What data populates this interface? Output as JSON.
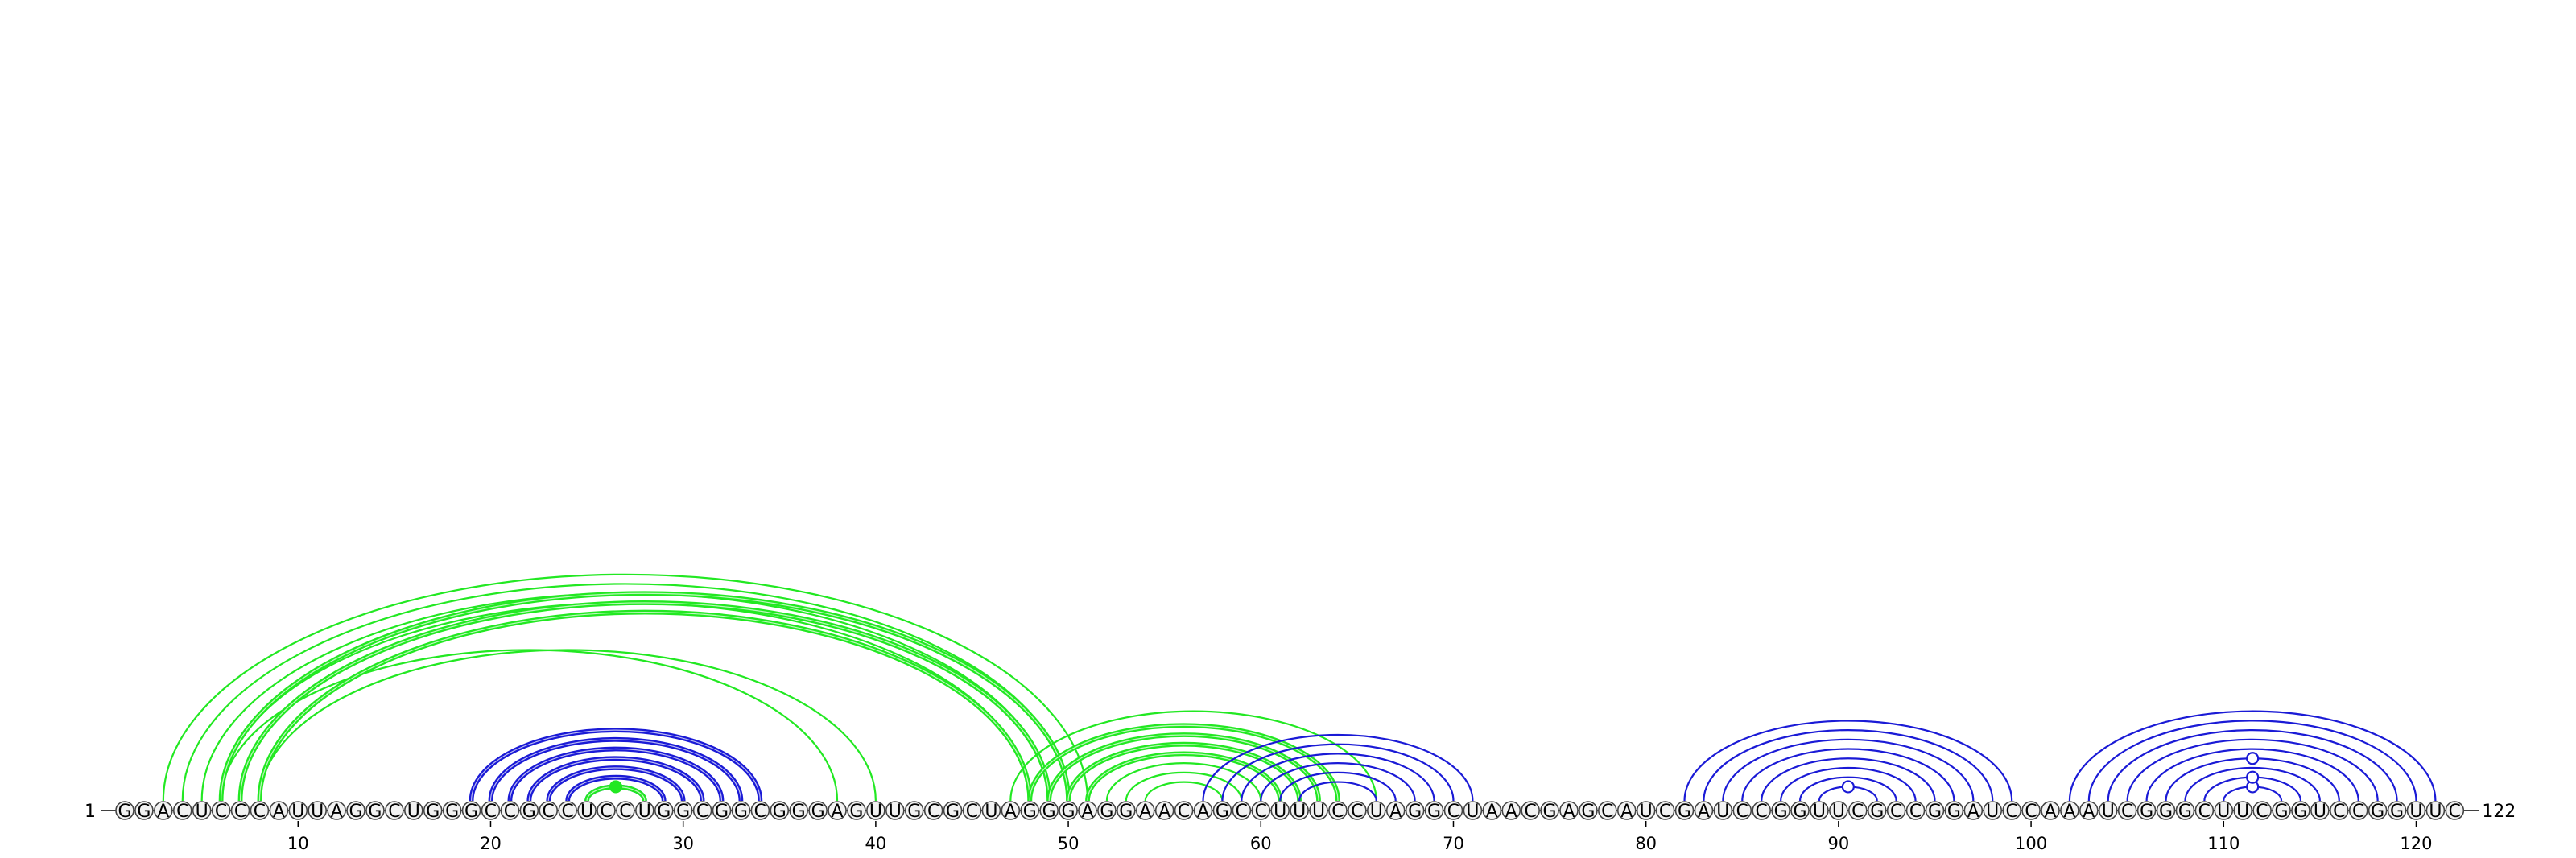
{
  "sequence": "GGACUCCCAUUAGGCUGGGCCGCCUCCUGGCGGCGGGAGUUGCGCUAGGGAGGAACAGCCUUUCCUAGGCUAACGAGCAUCGAUCCGGUUCGCCGGAUCCAAAUCGGGCUUCGGUCCGGUUC",
  "start_label": "1",
  "end_label": "122",
  "ticks": [
    {
      "pos": 10,
      "label": "10"
    },
    {
      "pos": 20,
      "label": "20"
    },
    {
      "pos": 30,
      "label": "30"
    },
    {
      "pos": 40,
      "label": "40"
    },
    {
      "pos": 50,
      "label": "50"
    },
    {
      "pos": 60,
      "label": "60"
    },
    {
      "pos": 70,
      "label": "70"
    },
    {
      "pos": 80,
      "label": "80"
    },
    {
      "pos": 90,
      "label": "90"
    },
    {
      "pos": 100,
      "label": "100"
    },
    {
      "pos": 110,
      "label": "110"
    },
    {
      "pos": 120,
      "label": "120"
    }
  ],
  "colors": {
    "blue": "#1a1ad6",
    "green": "#22e822",
    "ring": "#444444",
    "nt_fill": "#f2f2f2"
  },
  "arc_groups": [
    {
      "color": "blue",
      "weight": "bold",
      "pairs": [
        [
          19,
          34
        ],
        [
          20,
          33
        ],
        [
          21,
          32
        ],
        [
          22,
          31
        ],
        [
          23,
          30
        ],
        [
          24,
          29
        ],
        [
          25,
          28
        ]
      ]
    },
    {
      "color": "green",
      "weight": "bold",
      "pairs": [
        [
          25,
          28
        ]
      ]
    },
    {
      "color": "green",
      "weight": "normal",
      "pairs": [
        [
          3,
          51
        ],
        [
          4,
          50
        ],
        [
          5,
          49
        ],
        [
          6,
          48
        ],
        [
          6,
          38
        ],
        [
          8,
          40
        ]
      ]
    },
    {
      "color": "green",
      "weight": "bold",
      "pairs": [
        [
          6,
          50
        ],
        [
          7,
          49
        ],
        [
          8,
          48
        ]
      ]
    },
    {
      "color": "green",
      "weight": "bold",
      "pairs": [
        [
          48,
          64
        ],
        [
          49,
          63
        ],
        [
          50,
          62
        ],
        [
          51,
          61
        ]
      ]
    },
    {
      "color": "green",
      "weight": "normal",
      "pairs": [
        [
          47,
          66
        ],
        [
          52,
          60
        ],
        [
          53,
          59
        ],
        [
          54,
          58
        ]
      ]
    },
    {
      "color": "blue",
      "weight": "normal",
      "pairs": [
        [
          57,
          71
        ],
        [
          58,
          70
        ],
        [
          59,
          69
        ],
        [
          60,
          68
        ],
        [
          61,
          67
        ],
        [
          62,
          66
        ]
      ]
    },
    {
      "color": "blue",
      "weight": "normal",
      "pairs": [
        [
          82,
          99
        ],
        [
          83,
          98
        ],
        [
          84,
          97
        ],
        [
          85,
          96
        ],
        [
          86,
          95
        ],
        [
          87,
          94
        ],
        [
          88,
          93
        ],
        [
          89,
          92
        ]
      ]
    },
    {
      "color": "blue",
      "weight": "normal",
      "pairs": [
        [
          102,
          121
        ],
        [
          103,
          120
        ],
        [
          104,
          119
        ],
        [
          105,
          118
        ],
        [
          106,
          117
        ],
        [
          107,
          116
        ],
        [
          108,
          115
        ],
        [
          109,
          114
        ],
        [
          110,
          113
        ]
      ]
    }
  ],
  "markers": [
    {
      "pos": 26.5,
      "row": 0,
      "color": "green",
      "style": "filled"
    },
    {
      "pos": 90.5,
      "row": 0,
      "color": "blue",
      "style": "open"
    },
    {
      "pos": 111.5,
      "row": 0,
      "color": "blue",
      "style": "open"
    },
    {
      "pos": 111.5,
      "row": 1,
      "color": "blue",
      "style": "open"
    },
    {
      "pos": 111.5,
      "row": 3,
      "color": "blue",
      "style": "open"
    }
  ]
}
